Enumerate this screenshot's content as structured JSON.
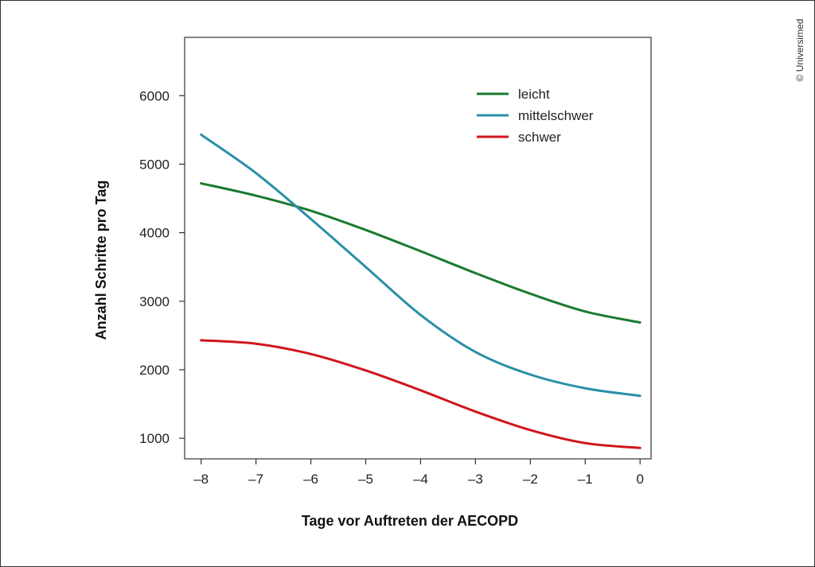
{
  "copyright": "© Universimed",
  "chart_data": {
    "type": "line",
    "title": "",
    "xlabel": "Tage vor Auftreten der AECOPD",
    "ylabel": "Anzahl Schritte pro Tag",
    "xlim": [
      -8.3,
      0.2
    ],
    "ylim": [
      700,
      6850
    ],
    "x_ticks": [
      -8,
      -7,
      -6,
      -5,
      -4,
      -3,
      -2,
      -1,
      0
    ],
    "x_tick_labels": [
      "–8",
      "–7",
      "–6",
      "–5",
      "–4",
      "–3",
      "–2",
      "–1",
      "0"
    ],
    "y_ticks": [
      1000,
      2000,
      3000,
      4000,
      5000,
      6000
    ],
    "y_tick_labels": [
      "1000",
      "2000",
      "3000",
      "4000",
      "5000",
      "6000"
    ],
    "grid": false,
    "legend_position": "top-right",
    "x": [
      -8,
      -7,
      -6,
      -5,
      -4,
      -3,
      -2,
      -1,
      0
    ],
    "series": [
      {
        "name": "leicht",
        "color": "#1a7a30",
        "values": [
          4720,
          4540,
          4320,
          4040,
          3730,
          3410,
          3110,
          2850,
          2690
        ]
      },
      {
        "name": "mittelschwer",
        "color": "#2a8fa8",
        "values": [
          5430,
          4870,
          4200,
          3500,
          2800,
          2260,
          1930,
          1730,
          1620
        ]
      },
      {
        "name": "schwer",
        "color": "#d0151c",
        "values": [
          2430,
          2380,
          2230,
          1990,
          1700,
          1390,
          1120,
          930,
          860
        ]
      }
    ]
  }
}
